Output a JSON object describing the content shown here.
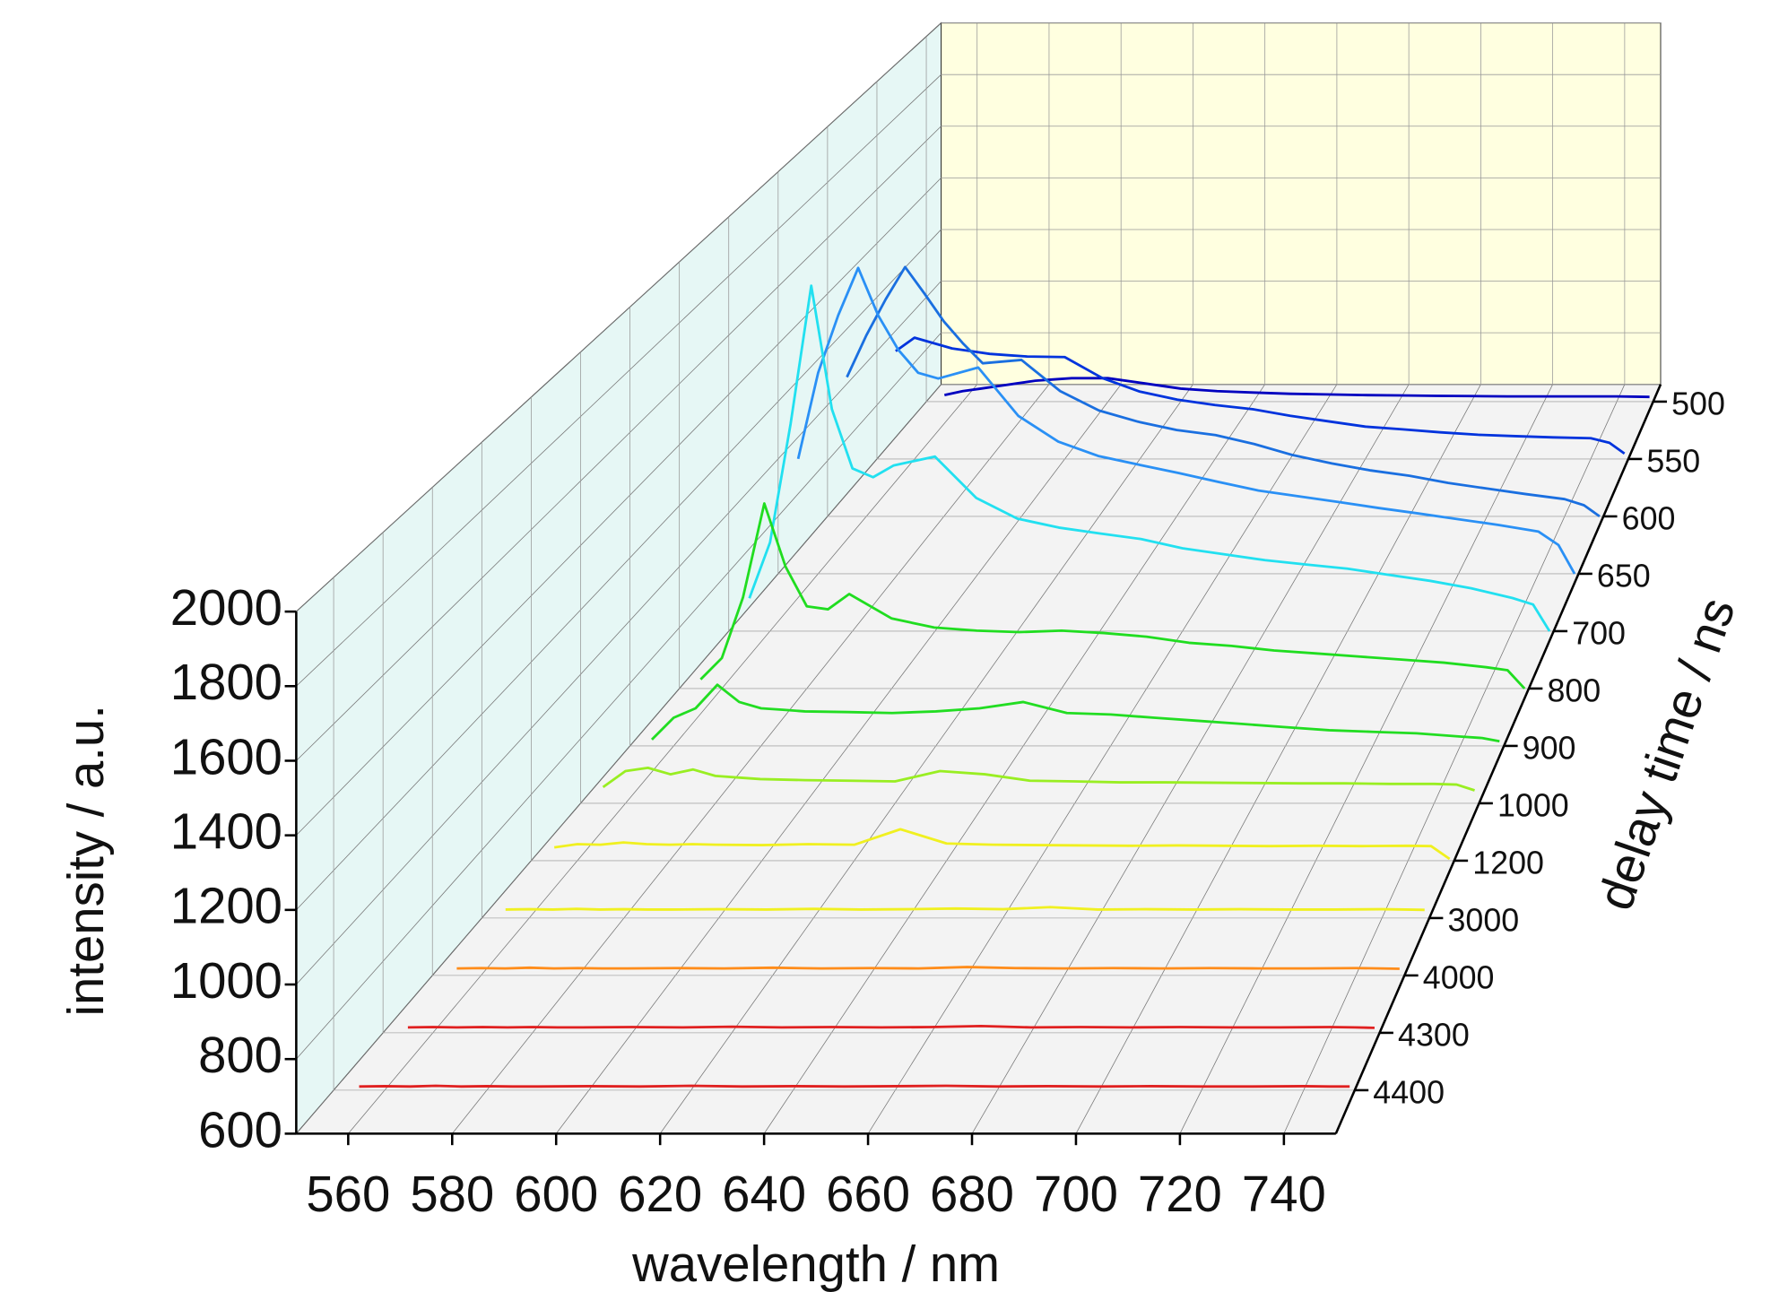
{
  "chart_data": {
    "type": "waterfall",
    "xlabel": "wavelength / nm",
    "ylabel": "intensity / a.u.",
    "zlabel": "delay time / ns",
    "xlim": [
      550,
      750
    ],
    "xticks": [
      560,
      580,
      600,
      620,
      640,
      660,
      680,
      700,
      720,
      740
    ],
    "ylim": [
      600,
      2000
    ],
    "yticks": [
      600,
      800,
      1000,
      1200,
      1400,
      1600,
      1800,
      2000
    ],
    "zcategories": [
      "500",
      "550",
      "600",
      "650",
      "700",
      "800",
      "900",
      "1000",
      "1200",
      "3000",
      "4000",
      "4300",
      "4400"
    ],
    "x": [
      555,
      560,
      565,
      570,
      575,
      580,
      585,
      590,
      600,
      610,
      620,
      630,
      640,
      650,
      660,
      670,
      680,
      690,
      700,
      710,
      720,
      730,
      740,
      745,
      749
    ],
    "series": [
      {
        "color": "#0000c0",
        "values": [
          625,
          640,
          650,
          660,
          670,
          680,
          685,
          690,
          690,
          670,
          650,
          640,
          635,
          630,
          628,
          625,
          624,
          622,
          621,
          620,
          620,
          620,
          620,
          619,
          618
        ]
      },
      {
        "color": "#0033dd",
        "values": [
          1000,
          1050,
          1030,
          1010,
          1000,
          990,
          985,
          980,
          978,
          900,
          850,
          820,
          800,
          785,
          760,
          740,
          720,
          710,
          699,
          690,
          685,
          680,
          677,
          660,
          620
        ]
      },
      {
        "color": "#1a6fe0",
        "values": [
          1100,
          1250,
          1380,
          1496,
          1400,
          1300,
          1220,
          1150,
          1162,
          1050,
          980,
          940,
          910,
          892,
          860,
          820,
          790,
          765,
          746,
          720,
          700,
          680,
          662,
          640,
          600
        ]
      },
      {
        "color": "#2a90f5",
        "values": [
          1000,
          1300,
          1500,
          1665,
          1500,
          1380,
          1300,
          1280,
          1318,
          1150,
          1060,
          1010,
          980,
          951,
          920,
          890,
          870,
          850,
          829,
          810,
          790,
          770,
          747,
          700,
          600
        ]
      },
      {
        "color": "#22e0f0",
        "values": [
          711,
          900,
          1300,
          1767,
          1350,
          1150,
          1120,
          1160,
          1190,
          1050,
          980,
          950,
          930,
          911,
          880,
          860,
          840,
          825,
          811,
          790,
          770,
          745,
          712,
          690,
          600
        ]
      },
      {
        "color": "#20dd20",
        "values": [
          630,
          700,
          900,
          1207,
          1000,
          870,
          860,
          910,
          830,
          800,
          790,
          785,
          790,
          782,
          770,
          750,
          740,
          725,
          715,
          705,
          695,
          685,
          670,
          660,
          600
        ]
      },
      {
        "color": "#22dd22",
        "values": [
          620,
          690,
          720,
          795,
          740,
          720,
          715,
          710,
          708,
          705,
          710,
          720,
          740,
          705,
          700,
          690,
          680,
          670,
          660,
          650,
          645,
          640,
          630,
          625,
          615
        ]
      },
      {
        "color": "#99ee22",
        "values": [
          650,
          700,
          710,
          690,
          705,
          685,
          680,
          675,
          672,
          670,
          668,
          700,
          690,
          670,
          668,
          665,
          665,
          664,
          663,
          662,
          662,
          660,
          660,
          658,
          640
        ]
      },
      {
        "color": "#f0f020",
        "values": [
          640,
          650,
          648,
          655,
          650,
          648,
          650,
          648,
          647,
          650,
          648,
          695,
          652,
          648,
          647,
          646,
          645,
          646,
          645,
          644,
          645,
          644,
          645,
          644,
          605
        ]
      },
      {
        "color": "#f0f020",
        "values": [
          625,
          626,
          625,
          627,
          625,
          626,
          625,
          625,
          626,
          625,
          627,
          625,
          626,
          628,
          626,
          632,
          625,
          626,
          625,
          626,
          625,
          625,
          626,
          625,
          624
        ]
      },
      {
        "color": "#ff8c1a",
        "values": [
          620,
          621,
          620,
          622,
          620,
          621,
          620,
          620,
          621,
          620,
          622,
          620,
          621,
          620,
          624,
          621,
          620,
          621,
          620,
          621,
          620,
          620,
          621,
          620,
          619
        ]
      },
      {
        "color": "#e02020",
        "values": [
          615,
          616,
          615,
          616,
          615,
          616,
          615,
          615,
          616,
          615,
          617,
          615,
          616,
          615,
          616,
          619,
          615,
          616,
          615,
          616,
          615,
          615,
          616,
          615,
          614
        ]
      },
      {
        "color": "#e02020",
        "values": [
          610,
          611,
          610,
          612,
          610,
          611,
          610,
          610,
          611,
          610,
          612,
          610,
          611,
          610,
          611,
          612,
          610,
          611,
          610,
          611,
          610,
          610,
          611,
          610,
          610
        ]
      }
    ]
  }
}
